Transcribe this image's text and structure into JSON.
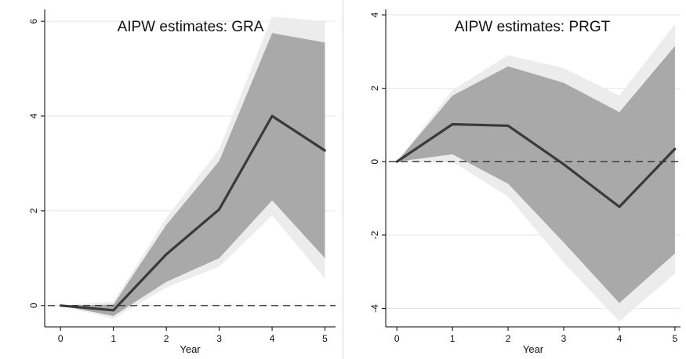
{
  "chart_data": [
    {
      "type": "line",
      "title": "AIPW estimates: GRA",
      "xlabel": "Year",
      "ylabel": "",
      "x": [
        0,
        1,
        2,
        3,
        4,
        5
      ],
      "xlim": [
        -0.3,
        5.2
      ],
      "ylim": [
        -0.45,
        6.25
      ],
      "xticks": [
        0,
        1,
        2,
        3,
        4,
        5
      ],
      "yticks": [
        0,
        2,
        4,
        6
      ],
      "reference_line": 0,
      "grid": true,
      "series": [
        {
          "role": "estimate",
          "values": [
            0,
            -0.1,
            1.08,
            2.03,
            4.0,
            3.27
          ]
        },
        {
          "role": "band-inner",
          "lower": [
            0,
            -0.22,
            0.5,
            1.0,
            2.22,
            1.0
          ],
          "upper": [
            0,
            0.02,
            1.7,
            3.05,
            5.75,
            5.55
          ]
        },
        {
          "role": "band-outer",
          "lower": [
            0,
            -0.28,
            0.38,
            0.82,
            1.9,
            0.57
          ],
          "upper": [
            0,
            0.08,
            1.85,
            3.3,
            6.1,
            6.0
          ]
        }
      ],
      "colors": {
        "estimate": "#3a3a3a",
        "band_inner": "#a9a9a9",
        "band_outer": "#ececec",
        "reference": "#333333",
        "grid": "#e6e6e6"
      }
    },
    {
      "type": "line",
      "title": "AIPW estimates: PRGT",
      "xlabel": "Year",
      "ylabel": "",
      "x": [
        0,
        1,
        2,
        3,
        4,
        5
      ],
      "xlim": [
        -0.2,
        5.1
      ],
      "ylim": [
        -4.5,
        4.15
      ],
      "xticks": [
        0,
        1,
        2,
        3,
        4,
        5
      ],
      "yticks": [
        -4,
        -2,
        0,
        2,
        4
      ],
      "reference_line": 0,
      "grid": true,
      "series": [
        {
          "role": "estimate",
          "values": [
            0,
            1.02,
            0.98,
            -0.07,
            -1.23,
            0.35
          ]
        },
        {
          "role": "band-inner",
          "lower": [
            0,
            0.2,
            -0.6,
            -2.2,
            -3.85,
            -2.5
          ],
          "upper": [
            0,
            1.8,
            2.6,
            2.15,
            1.35,
            3.15
          ]
        },
        {
          "role": "band-outer",
          "lower": [
            0,
            0.0,
            -0.95,
            -2.75,
            -4.35,
            -3.05
          ],
          "upper": [
            0,
            1.95,
            2.9,
            2.55,
            1.8,
            3.75
          ]
        }
      ],
      "colors": {
        "estimate": "#3a3a3a",
        "band_inner": "#a9a9a9",
        "band_outer": "#ececec",
        "reference": "#333333",
        "grid": "#e6e6e6"
      }
    }
  ]
}
